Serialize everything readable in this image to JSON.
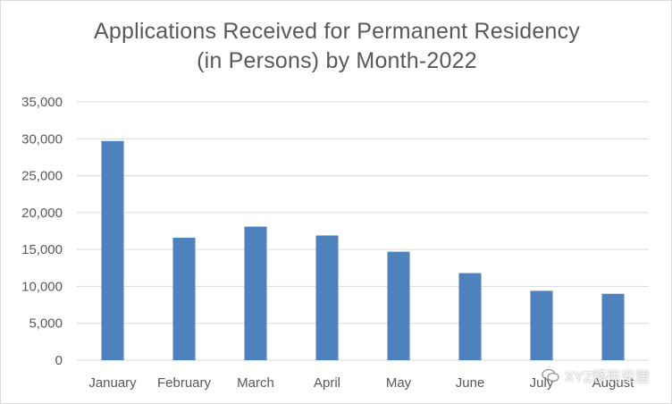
{
  "chart_data": {
    "type": "bar",
    "title_lines": [
      "Applications Received for Permanent Residency",
      "(in Persons) by Month-2022"
    ],
    "categories": [
      "January",
      "February",
      "March",
      "April",
      "May",
      "June",
      "July",
      "August"
    ],
    "series": [
      {
        "values": [
          29700,
          16600,
          18100,
          16900,
          14700,
          11800,
          9400,
          9000
        ]
      }
    ],
    "ylim": [
      0,
      35000
    ],
    "y_ticks": [
      "0",
      "5,000",
      "10,000",
      "15,000",
      "20,000",
      "25,000",
      "30,000",
      "35,000"
    ],
    "grid": true,
    "colors": {
      "bar": "#4f81bd",
      "grid": "#d9d9d9",
      "text": "#595959"
    }
  },
  "watermark": {
    "text": "XYZ移民安居",
    "icon": "wechat-icon"
  }
}
